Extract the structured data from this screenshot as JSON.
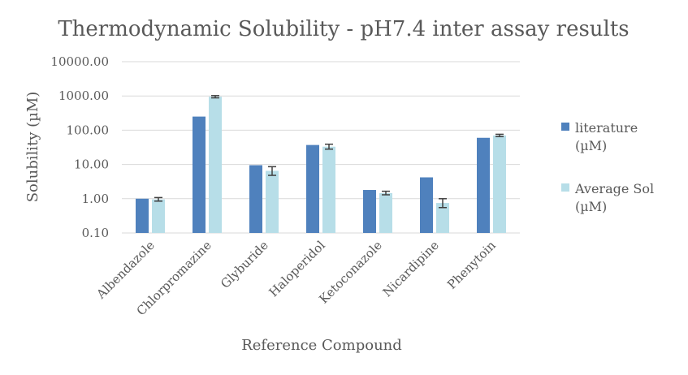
{
  "chart_data": {
    "type": "bar",
    "title": "Thermodynamic Solubility - pH7.4 inter assay results",
    "xlabel": "Reference Compound",
    "ylabel": "Solubility (µM)",
    "yscale": "log",
    "ylim": [
      0.1,
      10000
    ],
    "yticks": [
      "0.10",
      "1.00",
      "10.00",
      "100.00",
      "1000.00",
      "10000.00"
    ],
    "grid": true,
    "legend_position": "right",
    "categories": [
      "Albendazole",
      "Chlorpromazine",
      "Glyburide",
      "Haloperidol",
      "Ketoconazole",
      "Nicardipine",
      "Phenytoin"
    ],
    "series": [
      {
        "name": "literature (µM)",
        "legend_lines": [
          "literature",
          "(µM)"
        ],
        "color": "#4f81bd",
        "values": [
          1.0,
          250,
          9.5,
          37,
          1.8,
          4.2,
          60
        ]
      },
      {
        "name": "Average Sol (µM)",
        "legend_lines": [
          "Average Sol",
          "(µM)"
        ],
        "color": "#b7dee8",
        "values": [
          0.95,
          950,
          6.5,
          33,
          1.45,
          0.75,
          70
        ],
        "error_low": [
          0.85,
          880,
          4.8,
          28,
          1.3,
          0.55,
          65
        ],
        "error_high": [
          1.08,
          1020,
          8.6,
          39,
          1.65,
          1.0,
          76
        ]
      }
    ]
  }
}
